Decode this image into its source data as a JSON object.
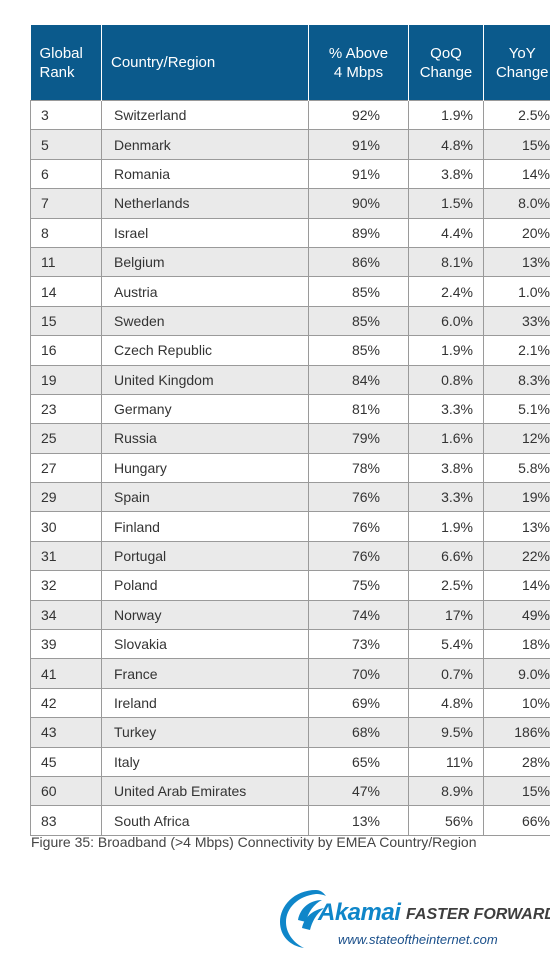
{
  "table": {
    "headers": {
      "rank_line1": "Global",
      "rank_line2": "Rank",
      "country": "Country/Region",
      "above_line1": "% Above",
      "above_line2": "4 Mbps",
      "qoq_line1": "QoQ",
      "qoq_line2": "Change",
      "yoy_line1": "YoY",
      "yoy_line2": "Change"
    },
    "header_color": "#0b5a8c",
    "stripe_color": "#eaeaea",
    "rows": [
      {
        "rank": "3",
        "country": "Switzerland",
        "above": "92%",
        "qoq": "1.9%",
        "yoy": "2.5%"
      },
      {
        "rank": "5",
        "country": "Denmark",
        "above": "91%",
        "qoq": "4.8%",
        "yoy": "15%"
      },
      {
        "rank": "6",
        "country": "Romania",
        "above": "91%",
        "qoq": "3.8%",
        "yoy": "14%"
      },
      {
        "rank": "7",
        "country": "Netherlands",
        "above": "90%",
        "qoq": "1.5%",
        "yoy": "8.0%"
      },
      {
        "rank": "8",
        "country": "Israel",
        "above": "89%",
        "qoq": "4.4%",
        "yoy": "20%"
      },
      {
        "rank": "11",
        "country": "Belgium",
        "above": "86%",
        "qoq": "8.1%",
        "yoy": "13%"
      },
      {
        "rank": "14",
        "country": "Austria",
        "above": "85%",
        "qoq": "2.4%",
        "yoy": "1.0%"
      },
      {
        "rank": "15",
        "country": "Sweden",
        "above": "85%",
        "qoq": "6.0%",
        "yoy": "33%"
      },
      {
        "rank": "16",
        "country": "Czech Republic",
        "above": "85%",
        "qoq": "1.9%",
        "yoy": "2.1%"
      },
      {
        "rank": "19",
        "country": "United Kingdom",
        "above": "84%",
        "qoq": "0.8%",
        "yoy": "8.3%"
      },
      {
        "rank": "23",
        "country": "Germany",
        "above": "81%",
        "qoq": "3.3%",
        "yoy": "5.1%"
      },
      {
        "rank": "25",
        "country": "Russia",
        "above": "79%",
        "qoq": "1.6%",
        "yoy": "12%"
      },
      {
        "rank": "27",
        "country": "Hungary",
        "above": "78%",
        "qoq": "3.8%",
        "yoy": "5.8%"
      },
      {
        "rank": "29",
        "country": "Spain",
        "above": "76%",
        "qoq": "3.3%",
        "yoy": "19%"
      },
      {
        "rank": "30",
        "country": "Finland",
        "above": "76%",
        "qoq": "1.9%",
        "yoy": "13%"
      },
      {
        "rank": "31",
        "country": "Portugal",
        "above": "76%",
        "qoq": "6.6%",
        "yoy": "22%"
      },
      {
        "rank": "32",
        "country": "Poland",
        "above": "75%",
        "qoq": "2.5%",
        "yoy": "14%"
      },
      {
        "rank": "34",
        "country": "Norway",
        "above": "74%",
        "qoq": "17%",
        "yoy": "49%"
      },
      {
        "rank": "39",
        "country": "Slovakia",
        "above": "73%",
        "qoq": "5.4%",
        "yoy": "18%"
      },
      {
        "rank": "41",
        "country": "France",
        "above": "70%",
        "qoq": "0.7%",
        "yoy": "9.0%"
      },
      {
        "rank": "42",
        "country": "Ireland",
        "above": "69%",
        "qoq": "4.8%",
        "yoy": "10%"
      },
      {
        "rank": "43",
        "country": "Turkey",
        "above": "68%",
        "qoq": "9.5%",
        "yoy": "186%"
      },
      {
        "rank": "45",
        "country": "Italy",
        "above": "65%",
        "qoq": "11%",
        "yoy": "28%"
      },
      {
        "rank": "60",
        "country": "United Arab Emirates",
        "above": "47%",
        "qoq": "8.9%",
        "yoy": "15%"
      },
      {
        "rank": "83",
        "country": "South Africa",
        "above": "13%",
        "qoq": "56%",
        "yoy": "66%"
      }
    ]
  },
  "caption": "Figure 35: Broadband (>4 Mbps) Connectivity by EMEA Country/Region",
  "logo": {
    "brand": "Akamai",
    "tagline": "FASTER FORWARD",
    "url": "www.stateoftheinternet.com",
    "icon": "akamai-swoosh-icon",
    "brand_color": "#0f86c9"
  }
}
